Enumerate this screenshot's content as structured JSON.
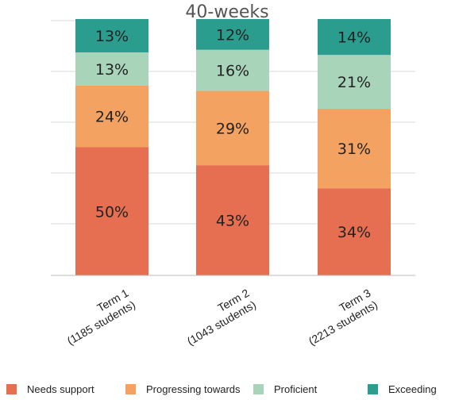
{
  "chart_data": {
    "type": "bar",
    "stacked": true,
    "title": "40-weeks",
    "categories": [
      [
        "Term 1",
        "(1185 students)"
      ],
      [
        "Term 2",
        "(1043 students)"
      ],
      [
        "Term 3",
        "(2213 students)"
      ]
    ],
    "series": [
      {
        "name": "Needs support",
        "color": "#e76f51",
        "values": [
          50,
          43,
          34
        ]
      },
      {
        "name": "Progressing towards",
        "color": "#f4a261",
        "values": [
          24,
          29,
          31
        ]
      },
      {
        "name": "Proficient",
        "color": "#a8d5ba",
        "values": [
          13,
          16,
          21
        ]
      },
      {
        "name": "Exceeding",
        "color": "#2a9d8f",
        "values": [
          13,
          12,
          14
        ]
      }
    ],
    "value_suffix": "%",
    "ylim": [
      0,
      100
    ],
    "grid": true,
    "legend_position": "bottom"
  }
}
